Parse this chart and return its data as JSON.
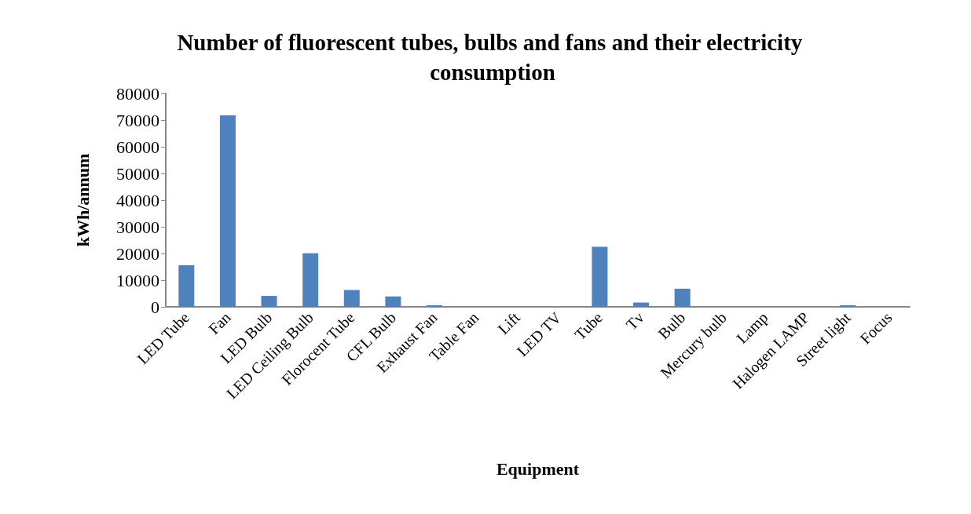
{
  "chart_data": {
    "type": "bar",
    "title": "Number of fluorescent tubes, bulbs and fans and their electricity consumption",
    "xlabel": "Equipment",
    "ylabel": "kWh/annum",
    "categories": [
      "LED Tube",
      "Fan",
      "LED Bulb",
      "LED Ceiling Bulb",
      "Florocent Tube",
      "CFL Bulb",
      "Exhaust Fan",
      "Table Fan",
      "Lift",
      "LED TV",
      "Tube",
      "Tv",
      "Bulb",
      "Mercury bulb",
      "Lamp",
      "Halogen LAMP",
      "Street light",
      "Focus"
    ],
    "values": [
      15600,
      71800,
      4100,
      20100,
      6300,
      3900,
      600,
      0,
      0,
      null,
      22500,
      1600,
      6800,
      null,
      0,
      null,
      600,
      0
    ],
    "color": "#4f81bd",
    "ylim": [
      0,
      80000
    ],
    "yticks": [
      0,
      10000,
      20000,
      30000,
      40000,
      50000,
      60000,
      70000,
      80000
    ],
    "grid": false
  }
}
